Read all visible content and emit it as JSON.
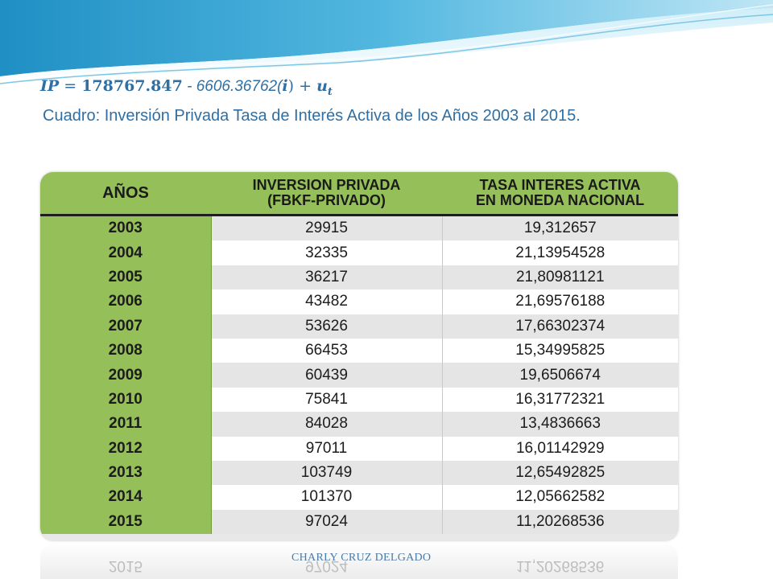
{
  "equation": {
    "lhs": "IP",
    "equals": "=",
    "intercept": "178767.847",
    "middle": " - 6606.36762(",
    "var": "i",
    "close": ")",
    "plus": "+",
    "error": "u",
    "error_sub": "t"
  },
  "subtitle": "Cuadro: Inversión Privada Tasa de Interés Activa de los Años 2003 al 2015.",
  "table": {
    "headers": {
      "year": "AÑOS",
      "inv_line1": "INVERSION PRIVADA",
      "inv_line2": "(FBKF-PRIVADO)",
      "rate_line1": "TASA INTERES ACTIVA",
      "rate_line2": "EN MONEDA NACIONAL"
    },
    "rows": [
      {
        "year": "2003",
        "inv": "29915",
        "rate": "19,312657"
      },
      {
        "year": "2004",
        "inv": "32335",
        "rate": "21,13954528"
      },
      {
        "year": "2005",
        "inv": "36217",
        "rate": "21,80981121"
      },
      {
        "year": "2006",
        "inv": "43482",
        "rate": "21,69576188"
      },
      {
        "year": "2007",
        "inv": "53626",
        "rate": "17,66302374"
      },
      {
        "year": "2008",
        "inv": "66453",
        "rate": "15,34995825"
      },
      {
        "year": "2009",
        "inv": "60439",
        "rate": "19,6506674"
      },
      {
        "year": "2010",
        "inv": "75841",
        "rate": "16,31772321"
      },
      {
        "year": "2011",
        "inv": "84028",
        "rate": "13,4836663"
      },
      {
        "year": "2012",
        "inv": "97011",
        "rate": "16,01142929"
      },
      {
        "year": "2013",
        "inv": "103749",
        "rate": "12,65492825"
      },
      {
        "year": "2014",
        "inv": "101370",
        "rate": "12,05662582"
      },
      {
        "year": "2015",
        "inv": "97024",
        "rate": "11,20268536"
      }
    ]
  },
  "footer": "CHARLY CRUZ DELGADO",
  "colors": {
    "accent_blue": "#2f6fa3",
    "table_green": "#95bf59"
  }
}
